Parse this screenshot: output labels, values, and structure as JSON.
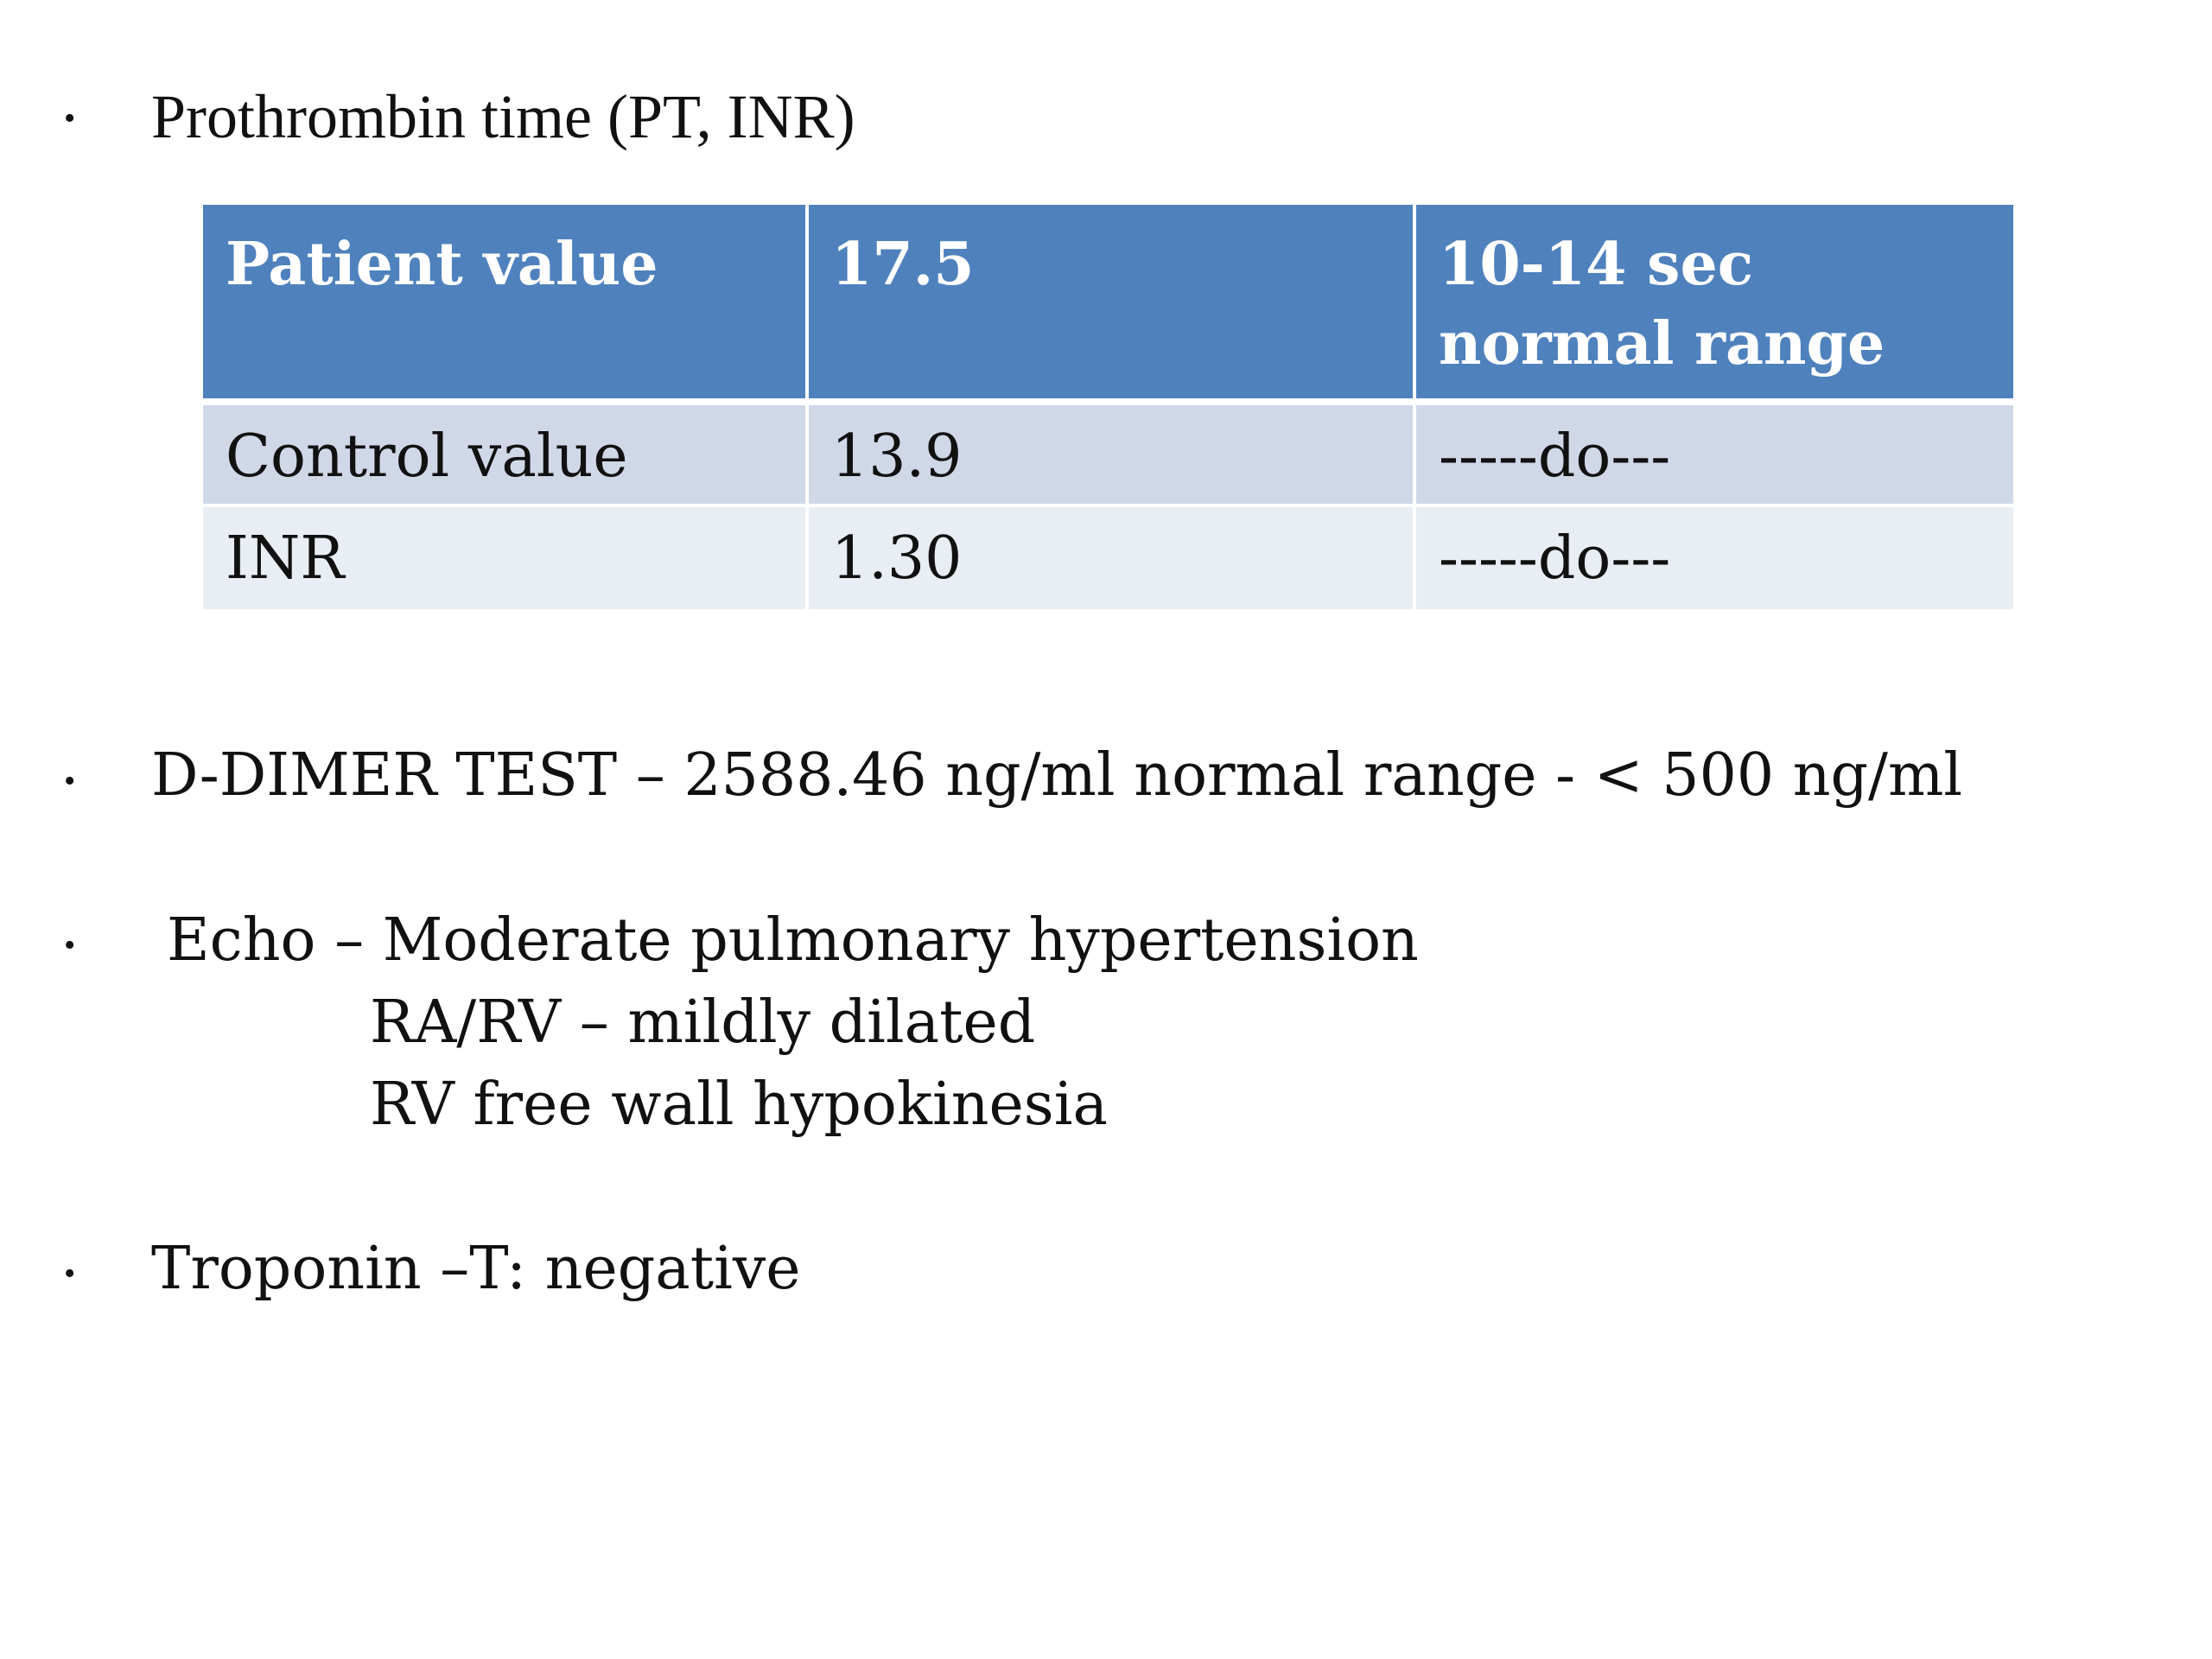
{
  "bullets": {
    "symbol": "•",
    "pt": "Prothrombin time (PT, INR)",
    "ddimer": "D-DIMER TEST – 2588.46 ng/ml normal range - < 500 ng/ml",
    "echo": {
      "line1": "Echo – Moderate pulmonary hypertension",
      "line2": "RA/RV – mildly dilated",
      "line3": "RV free wall hypokinesia"
    },
    "troponin": "Troponin –T: negative"
  },
  "table": {
    "header": [
      "Patient value",
      "17.5",
      "10-14 sec normal range"
    ],
    "rows": [
      [
        "Control value",
        "13.9",
        "-----do---"
      ],
      [
        "INR",
        "1.30",
        "-----do---"
      ]
    ]
  },
  "colors": {
    "header_bg": "#4f81bd",
    "row1_bg": "#d0d8e8",
    "row2_bg": "#e9edf4"
  }
}
